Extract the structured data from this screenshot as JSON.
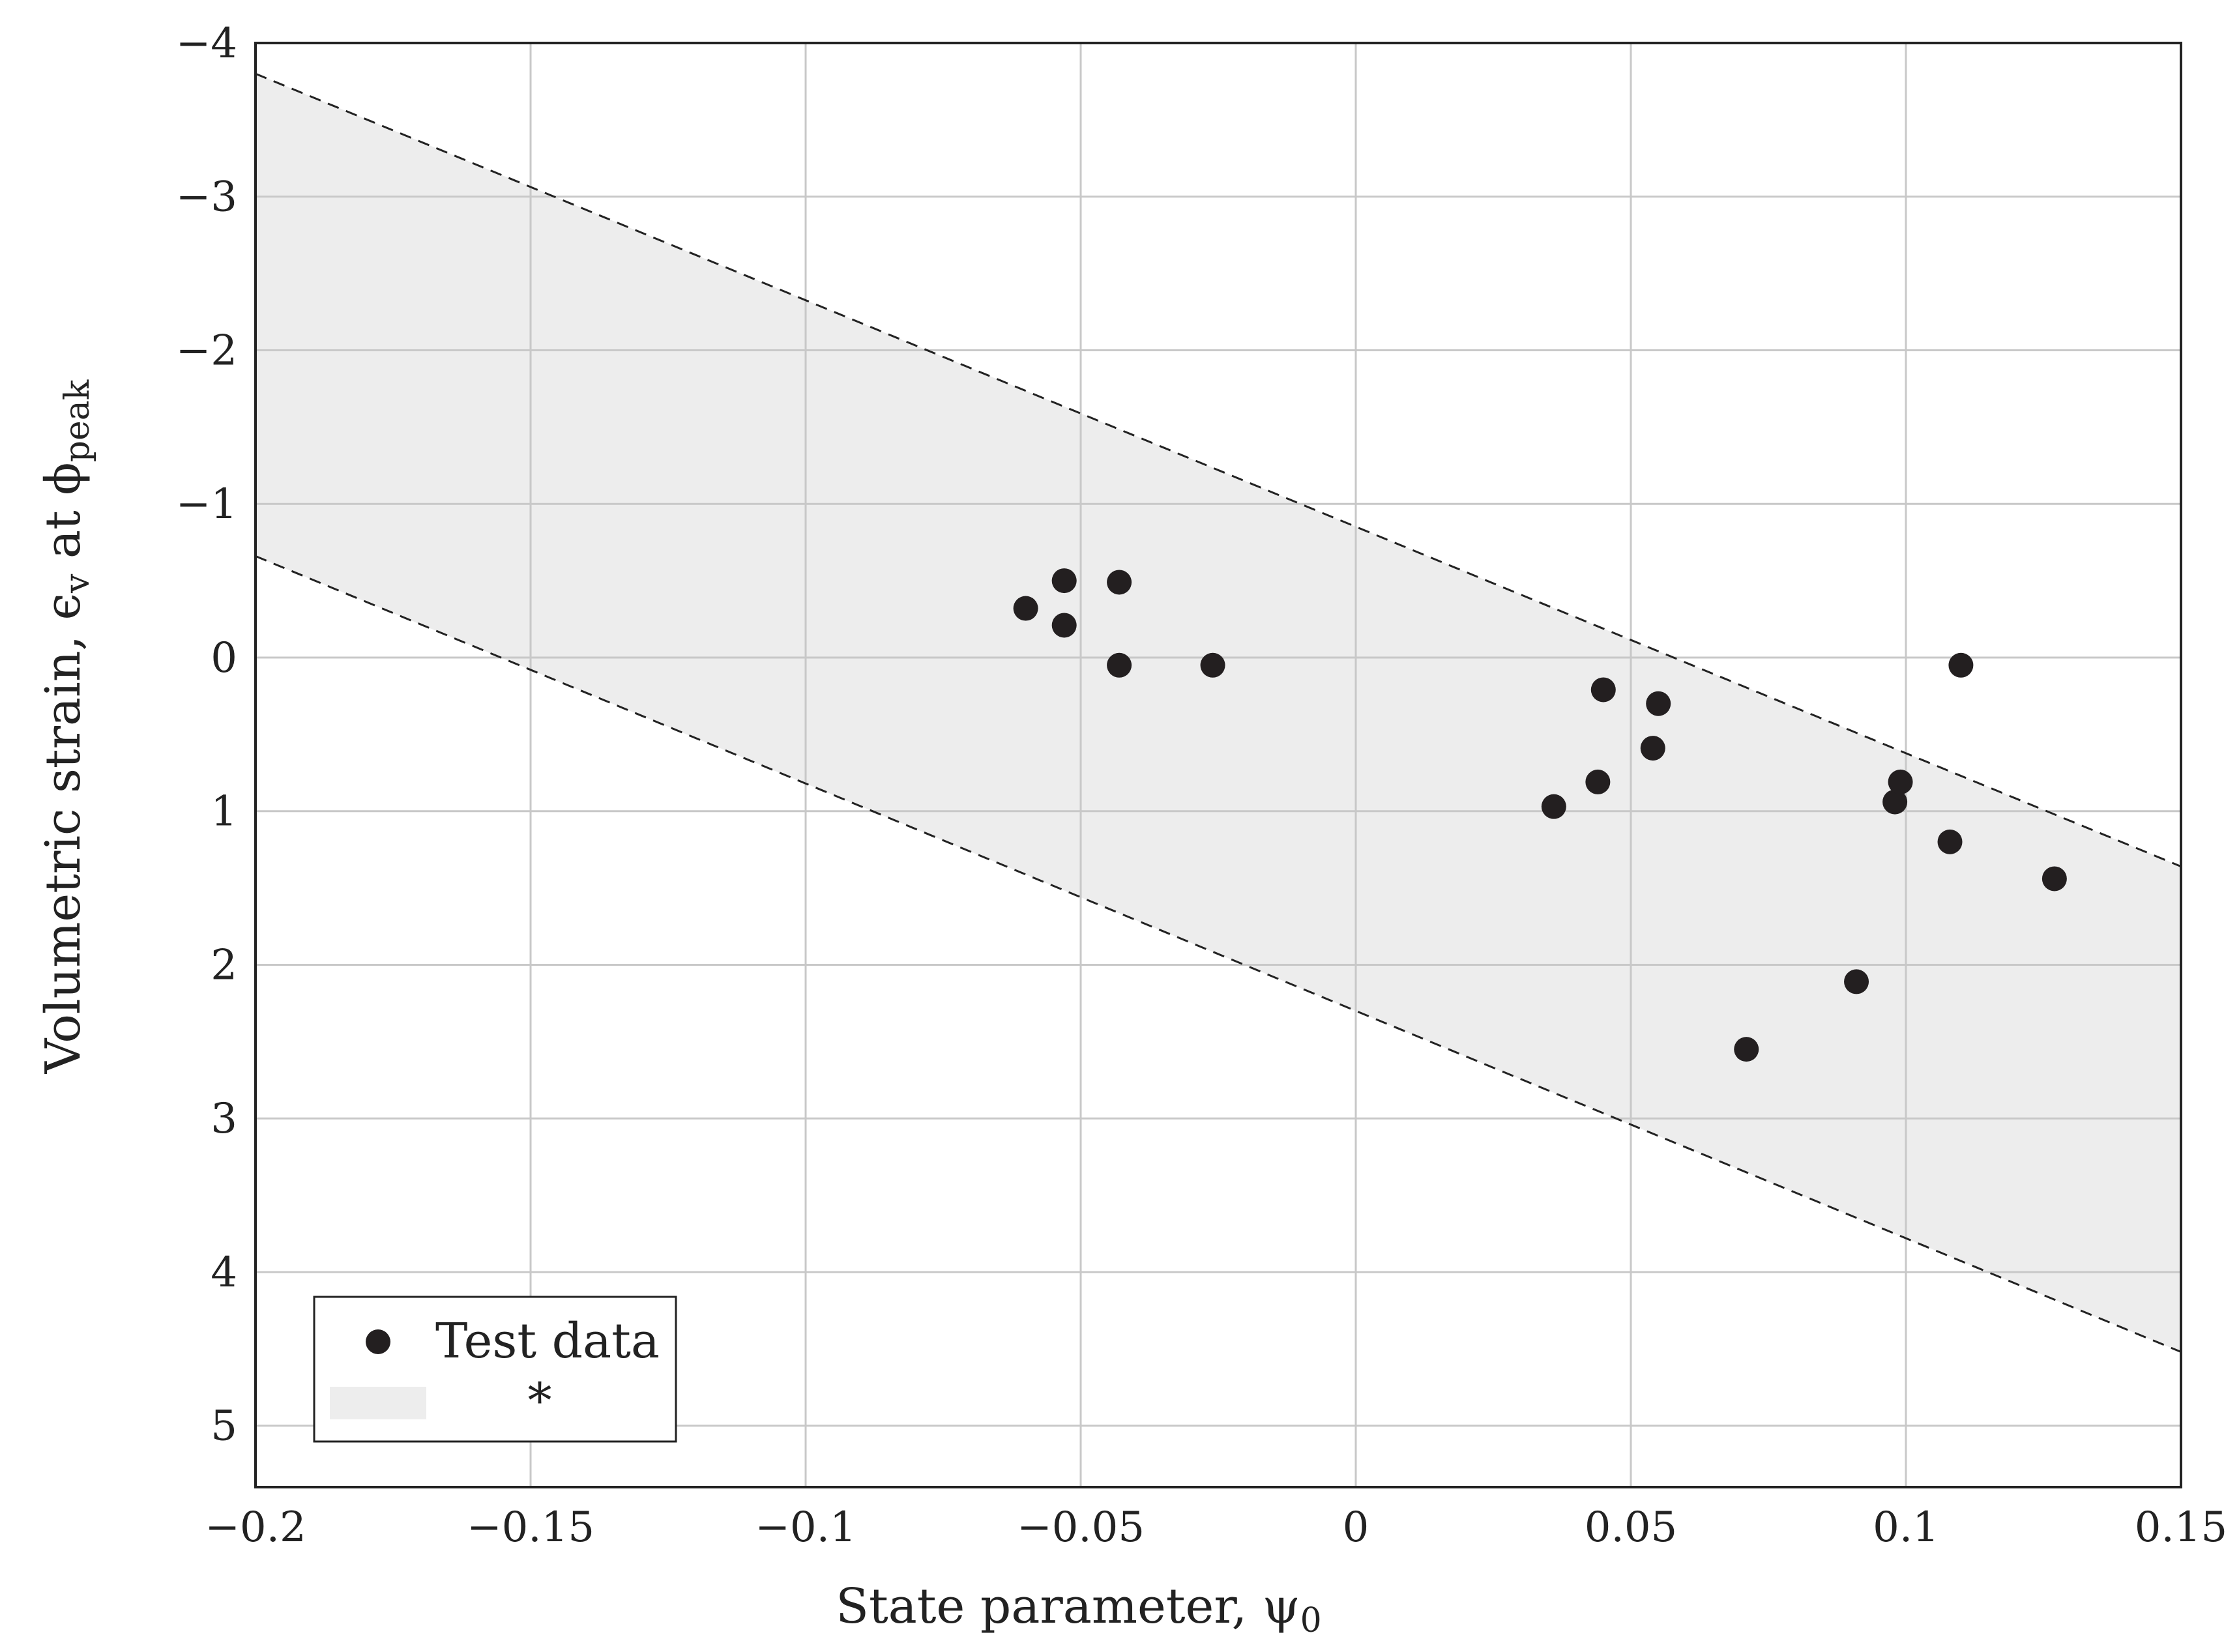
{
  "chart_data": {
    "type": "scatter",
    "xlabel": "State parameter, ψ",
    "xlabel_sub": "0",
    "ylabel": "Volumetric strain, ϵ",
    "ylabel_sub1": "v",
    "ylabel_mid": " at ϕ",
    "ylabel_sub2": "peak",
    "xlim": [
      -0.2,
      0.15
    ],
    "ylim": [
      -4,
      5.4
    ],
    "y_inverted": true,
    "grid": true,
    "x_ticks": [
      -0.2,
      -0.15,
      -0.1,
      -0.05,
      0,
      0.05,
      0.1,
      0.15
    ],
    "x_tick_labels": [
      "−0.2",
      "−0.15",
      "−0.1",
      "−0.05",
      "0",
      "0.05",
      "0.1",
      "0.15"
    ],
    "y_ticks": [
      -4,
      -3,
      -2,
      -1,
      0,
      1,
      2,
      3,
      4,
      5
    ],
    "y_tick_labels": [
      "−4",
      "−3",
      "−2",
      "−1",
      "0",
      "1",
      "2",
      "3",
      "4",
      "5"
    ],
    "legend_position": "bottom-left",
    "series": [
      {
        "name": "Test data",
        "color": "#231f20",
        "points": [
          {
            "x": -0.06,
            "y": -0.32
          },
          {
            "x": -0.053,
            "y": -0.5
          },
          {
            "x": -0.053,
            "y": -0.21
          },
          {
            "x": -0.043,
            "y": -0.49
          },
          {
            "x": -0.043,
            "y": 0.05
          },
          {
            "x": -0.026,
            "y": 0.05
          },
          {
            "x": 0.036,
            "y": 0.97
          },
          {
            "x": 0.044,
            "y": 0.81
          },
          {
            "x": 0.045,
            "y": 0.21
          },
          {
            "x": 0.054,
            "y": 0.59
          },
          {
            "x": 0.055,
            "y": 0.3
          },
          {
            "x": 0.071,
            "y": 2.55
          },
          {
            "x": 0.091,
            "y": 2.11
          },
          {
            "x": 0.098,
            "y": 0.94
          },
          {
            "x": 0.099,
            "y": 0.81
          },
          {
            "x": 0.108,
            "y": 1.2
          },
          {
            "x": 0.11,
            "y": 0.05
          },
          {
            "x": 0.127,
            "y": 1.44
          }
        ]
      }
    ],
    "band": {
      "name": "*",
      "fill": "#ededed",
      "upper": [
        {
          "x": -0.2,
          "y": -3.8
        },
        {
          "x": 0.15,
          "y": 1.36
        }
      ],
      "lower": [
        {
          "x": -0.2,
          "y": -0.66
        },
        {
          "x": 0.15,
          "y": 4.52
        }
      ]
    }
  }
}
